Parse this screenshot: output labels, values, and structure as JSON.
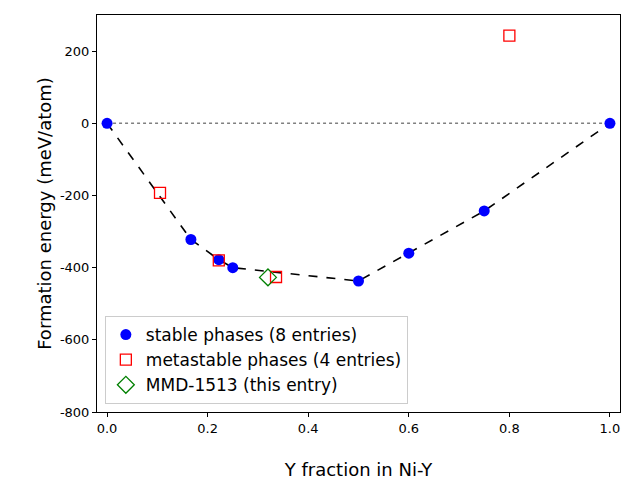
{
  "chart_data": {
    "type": "scatter",
    "x_label": "Y fraction in Ni-Y",
    "y_label": "Formation energy (meV/atom)",
    "xlim": [
      -0.02,
      1.02
    ],
    "xticks": [
      {
        "value": 0,
        "label": "0.0"
      },
      {
        "value": 0.2,
        "label": "0.2"
      },
      {
        "value": 0.4,
        "label": "0.4"
      },
      {
        "value": 0.6,
        "label": "0.6"
      },
      {
        "value": 0.8,
        "label": "0.8"
      },
      {
        "value": 1,
        "label": "1.0"
      }
    ],
    "ylim": [
      -800,
      300
    ],
    "yticks": [
      -800,
      -600,
      -400,
      -200,
      0,
      200
    ],
    "grid": false,
    "legend": "lower left",
    "series": [
      {
        "type": "line",
        "color": "#808080",
        "line_style": "dotted",
        "x": [
          0,
          1
        ],
        "values": [
          0,
          0
        ]
      },
      {
        "type": "line",
        "color": "#000000",
        "line_style": "dashed",
        "x": [
          0,
          0.1667,
          0.2222,
          0.25,
          0.5,
          0.6,
          0.75,
          1
        ],
        "values": [
          0,
          -322,
          -378,
          -400,
          -437,
          -360,
          -243,
          0
        ]
      },
      {
        "name": "stable phases (8 entries)",
        "type": "scatter",
        "color": "#0000ff",
        "marker": "circle",
        "x": [
          0,
          0.1667,
          0.2222,
          0.25,
          0.5,
          0.6,
          0.75,
          1
        ],
        "values": [
          0,
          -322,
          -378,
          -400,
          -437,
          -360,
          -243,
          0
        ]
      },
      {
        "name": "metastable phases (4 entries)",
        "type": "scatter",
        "color": "#ff0000",
        "marker": "square-open",
        "x": [
          0.1053,
          0.2222,
          0.336,
          0.8
        ],
        "values": [
          -193,
          -380,
          -426,
          243
        ]
      },
      {
        "name": "MMD-1513 (this entry)",
        "type": "scatter",
        "color": "#008000",
        "marker": "diamond-open",
        "x": [
          0.32
        ],
        "values": [
          -427
        ]
      }
    ]
  }
}
